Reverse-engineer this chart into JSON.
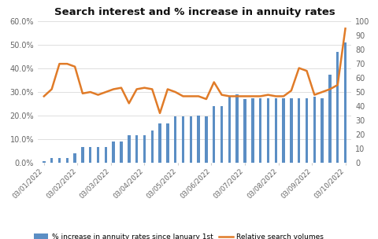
{
  "title": "Search interest and % increase in annuity rates",
  "x_labels": [
    "03/01/2022",
    "03/02/2022",
    "03/03/2022",
    "03/04/2022",
    "03/05/2022",
    "03/06/2022",
    "03/07/2022",
    "03/08/2022",
    "03/09/2022",
    "03/10/2022"
  ],
  "bar_values": [
    0.005,
    0.02,
    0.02,
    0.02,
    0.04,
    0.065,
    0.065,
    0.065,
    0.065,
    0.09,
    0.09,
    0.115,
    0.115,
    0.115,
    0.135,
    0.165,
    0.165,
    0.195,
    0.195,
    0.195,
    0.2,
    0.195,
    0.24,
    0.24,
    0.28,
    0.29,
    0.27,
    0.275,
    0.275,
    0.275,
    0.275,
    0.275,
    0.275,
    0.275,
    0.275,
    0.28,
    0.275,
    0.375,
    0.47,
    0.51
  ],
  "line_values": [
    47,
    52,
    70,
    70,
    68,
    49,
    50,
    48,
    50,
    52,
    53,
    42,
    52,
    53,
    52,
    35,
    52,
    50,
    47,
    47,
    47,
    45,
    57,
    48,
    47,
    47,
    47,
    47,
    47,
    48,
    47,
    47,
    51,
    67,
    65,
    48,
    50,
    52,
    55,
    95
  ],
  "bar_color": "#5b8ec4",
  "line_color": "#e07b28",
  "legend_bar": "% increase in annuity rates since January 1st",
  "legend_line": "Relative search volumes",
  "ylim_left": [
    0.0,
    0.6
  ],
  "ylim_right": [
    0,
    100
  ],
  "yticks_left": [
    0.0,
    0.1,
    0.2,
    0.3,
    0.4,
    0.5,
    0.6
  ],
  "ytick_labels_left": [
    "0.0%",
    "10.0%",
    "20.0%",
    "30.0%",
    "40.0%",
    "50.0%",
    "60.0%"
  ],
  "yticks_right": [
    0,
    10,
    20,
    30,
    40,
    50,
    60,
    70,
    80,
    90,
    100
  ],
  "background_color": "#ffffff",
  "grid_color": "#d9d9d9",
  "figwidth": 4.8,
  "figheight": 3.04,
  "dpi": 100
}
